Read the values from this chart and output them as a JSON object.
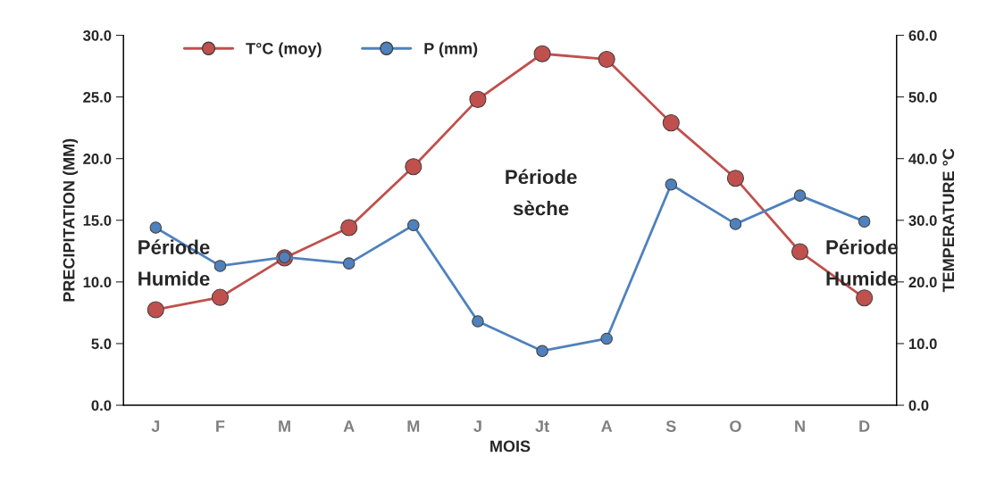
{
  "chart_data": {
    "type": "line",
    "categories": [
      "J",
      "F",
      "M",
      "A",
      "M",
      "J",
      "Jt",
      "A",
      "S",
      "O",
      "N",
      "D"
    ],
    "xlabel": "MOIS",
    "ylabel": "PRECIPITATION (MM)",
    "y2label": "TEMPERATURE °C",
    "series": [
      {
        "name": "T°C (moy)",
        "color": "#c0504d",
        "axis": "y2",
        "values": [
          15.5,
          17.5,
          23.9,
          28.8,
          38.7,
          49.6,
          57.0,
          56.1,
          45.8,
          36.8,
          24.9,
          17.4
        ]
      },
      {
        "name": "P (mm)",
        "color": "#4f81bd",
        "values": [
          14.4,
          11.3,
          12.0,
          11.5,
          14.6,
          6.8,
          4.4,
          5.4,
          17.9,
          14.7,
          17.0,
          14.9
        ]
      }
    ],
    "ylim": [
      0,
      30
    ],
    "yticks": [
      {
        "value": 0,
        "label": "0.0"
      },
      {
        "value": 5,
        "label": "5.0"
      },
      {
        "value": 10,
        "label": "10.0"
      },
      {
        "value": 15,
        "label": "15.0"
      },
      {
        "value": 20,
        "label": "20.0"
      },
      {
        "value": 25,
        "label": "25.0"
      },
      {
        "value": 30,
        "label": "30.0"
      }
    ],
    "y2lim": [
      0,
      60
    ],
    "y2ticks": [
      {
        "value": 0,
        "label": "0.0"
      },
      {
        "value": 10,
        "label": "10.0"
      },
      {
        "value": 20,
        "label": "20.0"
      },
      {
        "value": 30,
        "label": "30.0"
      },
      {
        "value": 40,
        "label": "40.0"
      },
      {
        "value": 50,
        "label": "50.0"
      },
      {
        "value": 60,
        "label": "60.0"
      }
    ],
    "annotations": [
      "Période\nHumide",
      "Période\nsèche",
      "Période\nHumide"
    ],
    "marker": "circle",
    "line_style": "solid",
    "grid": false,
    "legend": "top left"
  }
}
